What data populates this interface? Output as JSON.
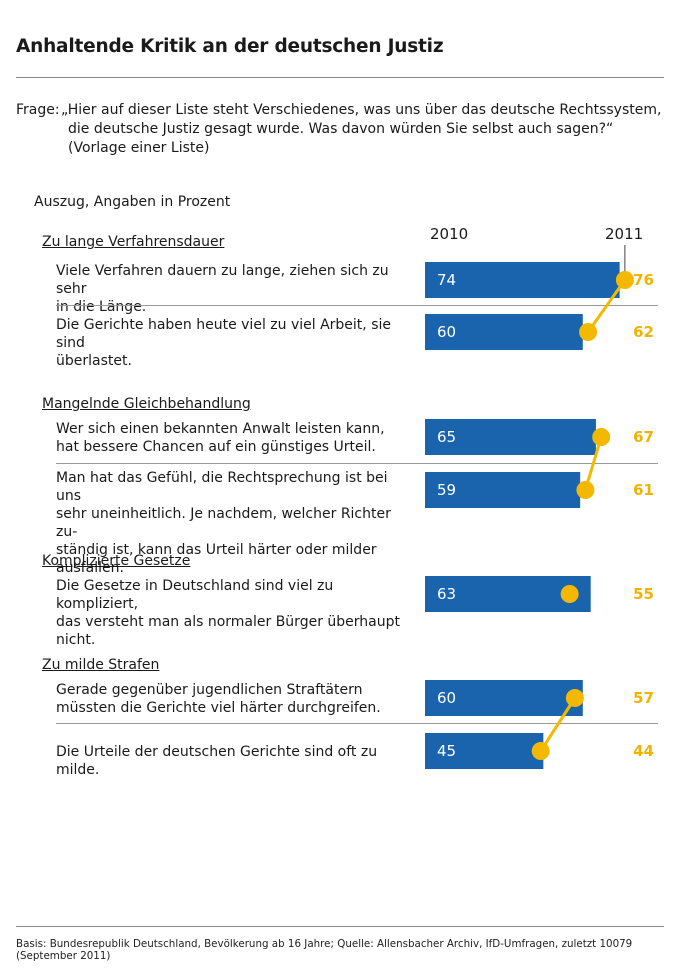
{
  "title": "Anhaltende Kritik an der deutschen Justiz",
  "question": {
    "prefix": "Frage:",
    "line1": "„Hier auf dieser Liste steht Verschiedenes, was uns über das deutsche Rechtssystem,",
    "line2": "die deutsche Justiz gesagt wurde. Was davon würden Sie selbst auch sagen?“",
    "line3": "(Vorlage einer Liste)"
  },
  "subtitle": "Auszug, Angaben in Prozent",
  "years": {
    "y1": "2010",
    "y2": "2011"
  },
  "groups": [
    {
      "title": "Zu lange Verfahrensdauer",
      "items": [
        {
          "text1": "Viele Verfahren dauern zu lange, ziehen sich zu sehr",
          "text2": "in die Länge.",
          "text3": ""
        },
        {
          "text1": "Die Gerichte haben heute viel zu viel Arbeit, sie sind",
          "text2": "überlastet.",
          "text3": ""
        }
      ]
    },
    {
      "title": "Mangelnde Gleichbehandlung",
      "items": [
        {
          "text1": "Wer sich einen bekannten Anwalt leisten kann,",
          "text2": "hat bessere Chancen auf ein günstiges Urteil.",
          "text3": ""
        },
        {
          "text1": "Man hat das Gefühl, die Rechtsprechung ist bei uns",
          "text2": "sehr uneinheitlich. Je nachdem, welcher Richter zu-",
          "text3": "ständig ist, kann das Urteil härter oder milder ausfallen."
        }
      ]
    },
    {
      "title": "Komplizierte Gesetze",
      "items": [
        {
          "text1": "Die Gesetze in Deutschland sind viel zu kompliziert,",
          "text2": "das versteht man als normaler Bürger überhaupt nicht.",
          "text3": ""
        }
      ]
    },
    {
      "title": "Zu milde Strafen",
      "items": [
        {
          "text1": "Gerade gegenüber jugendlichen Straftätern",
          "text2": "müssten die Gerichte viel härter durchgreifen.",
          "text3": ""
        },
        {
          "text1": "Die Urteile der deutschen Gerichte sind oft zu milde.",
          "text2": "",
          "text3": ""
        }
      ]
    }
  ],
  "footnote": "Basis: Bundesrepublik Deutschland, Bevölkerung ab 16 Jahre; Quelle: Allensbacher Archiv, IfD-Umfragen, zuletzt 10079 (September 2011)",
  "colors": {
    "bar": "#1a63ad",
    "dot": "#f5b800",
    "label2011": "#f0b400"
  },
  "chart_data": {
    "type": "bar",
    "orientation": "horizontal",
    "title": "Anhaltende Kritik an der deutschen Justiz",
    "unit": "Prozent",
    "categories": [
      "Viele Verfahren dauern zu lange, ziehen sich zu sehr in die Länge.",
      "Die Gerichte haben heute viel zu viel Arbeit, sie sind überlastet.",
      "Wer sich einen bekannten Anwalt leisten kann, hat bessere Chancen auf ein günstiges Urteil.",
      "Man hat das Gefühl, die Rechtsprechung ist bei uns sehr uneinheitlich. Je nachdem, welcher Richter zuständig ist, kann das Urteil härter oder milder ausfallen.",
      "Die Gesetze in Deutschland sind viel zu kompliziert, das versteht man als normaler Bürger überhaupt nicht.",
      "Gerade gegenüber jugendlichen Straftätern müssten die Gerichte viel härter durchgreifen.",
      "Die Urteile der deutschen Gerichte sind oft zu milde."
    ],
    "series": [
      {
        "name": "2010",
        "style": "bar",
        "values": [
          74,
          60,
          65,
          59,
          63,
          60,
          45
        ]
      },
      {
        "name": "2011",
        "style": "dot",
        "values": [
          76,
          62,
          67,
          61,
          55,
          57,
          44
        ]
      }
    ],
    "connected_pairs": [
      [
        0,
        1
      ],
      [
        2,
        3
      ],
      [
        5,
        6
      ]
    ],
    "xlim": [
      0,
      100
    ]
  }
}
